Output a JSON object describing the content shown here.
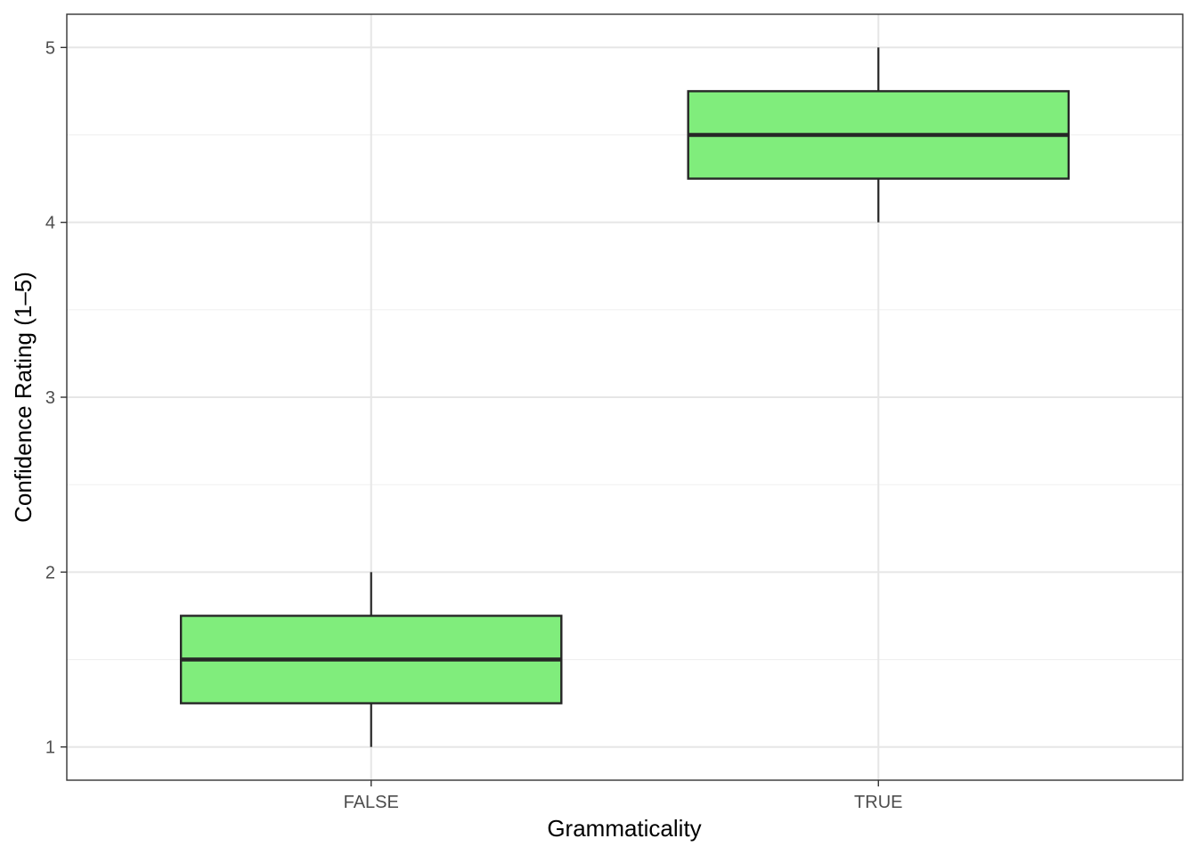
{
  "chart_data": {
    "type": "boxplot",
    "xlabel": "Grammaticality",
    "ylabel": "Confidence Rating (1–5)",
    "ylim": [
      0.81,
      5.19
    ],
    "yticks": [
      1,
      2,
      3,
      4,
      5
    ],
    "grid": true,
    "legend": "none",
    "categories": [
      "FALSE",
      "TRUE"
    ],
    "boxes": [
      {
        "category": "FALSE",
        "min": 1,
        "q1": 1.25,
        "median": 1.5,
        "q3": 1.75,
        "max": 2
      },
      {
        "category": "TRUE",
        "min": 4,
        "q1": 4.25,
        "median": 4.5,
        "q3": 4.75,
        "max": 5
      }
    ],
    "colors": {
      "box_fill": "#80ED7C",
      "box_stroke": "#262626",
      "grid_major": "#E6E6E6",
      "grid_minor": "#F0F0F0",
      "panel_border": "#333333"
    }
  }
}
